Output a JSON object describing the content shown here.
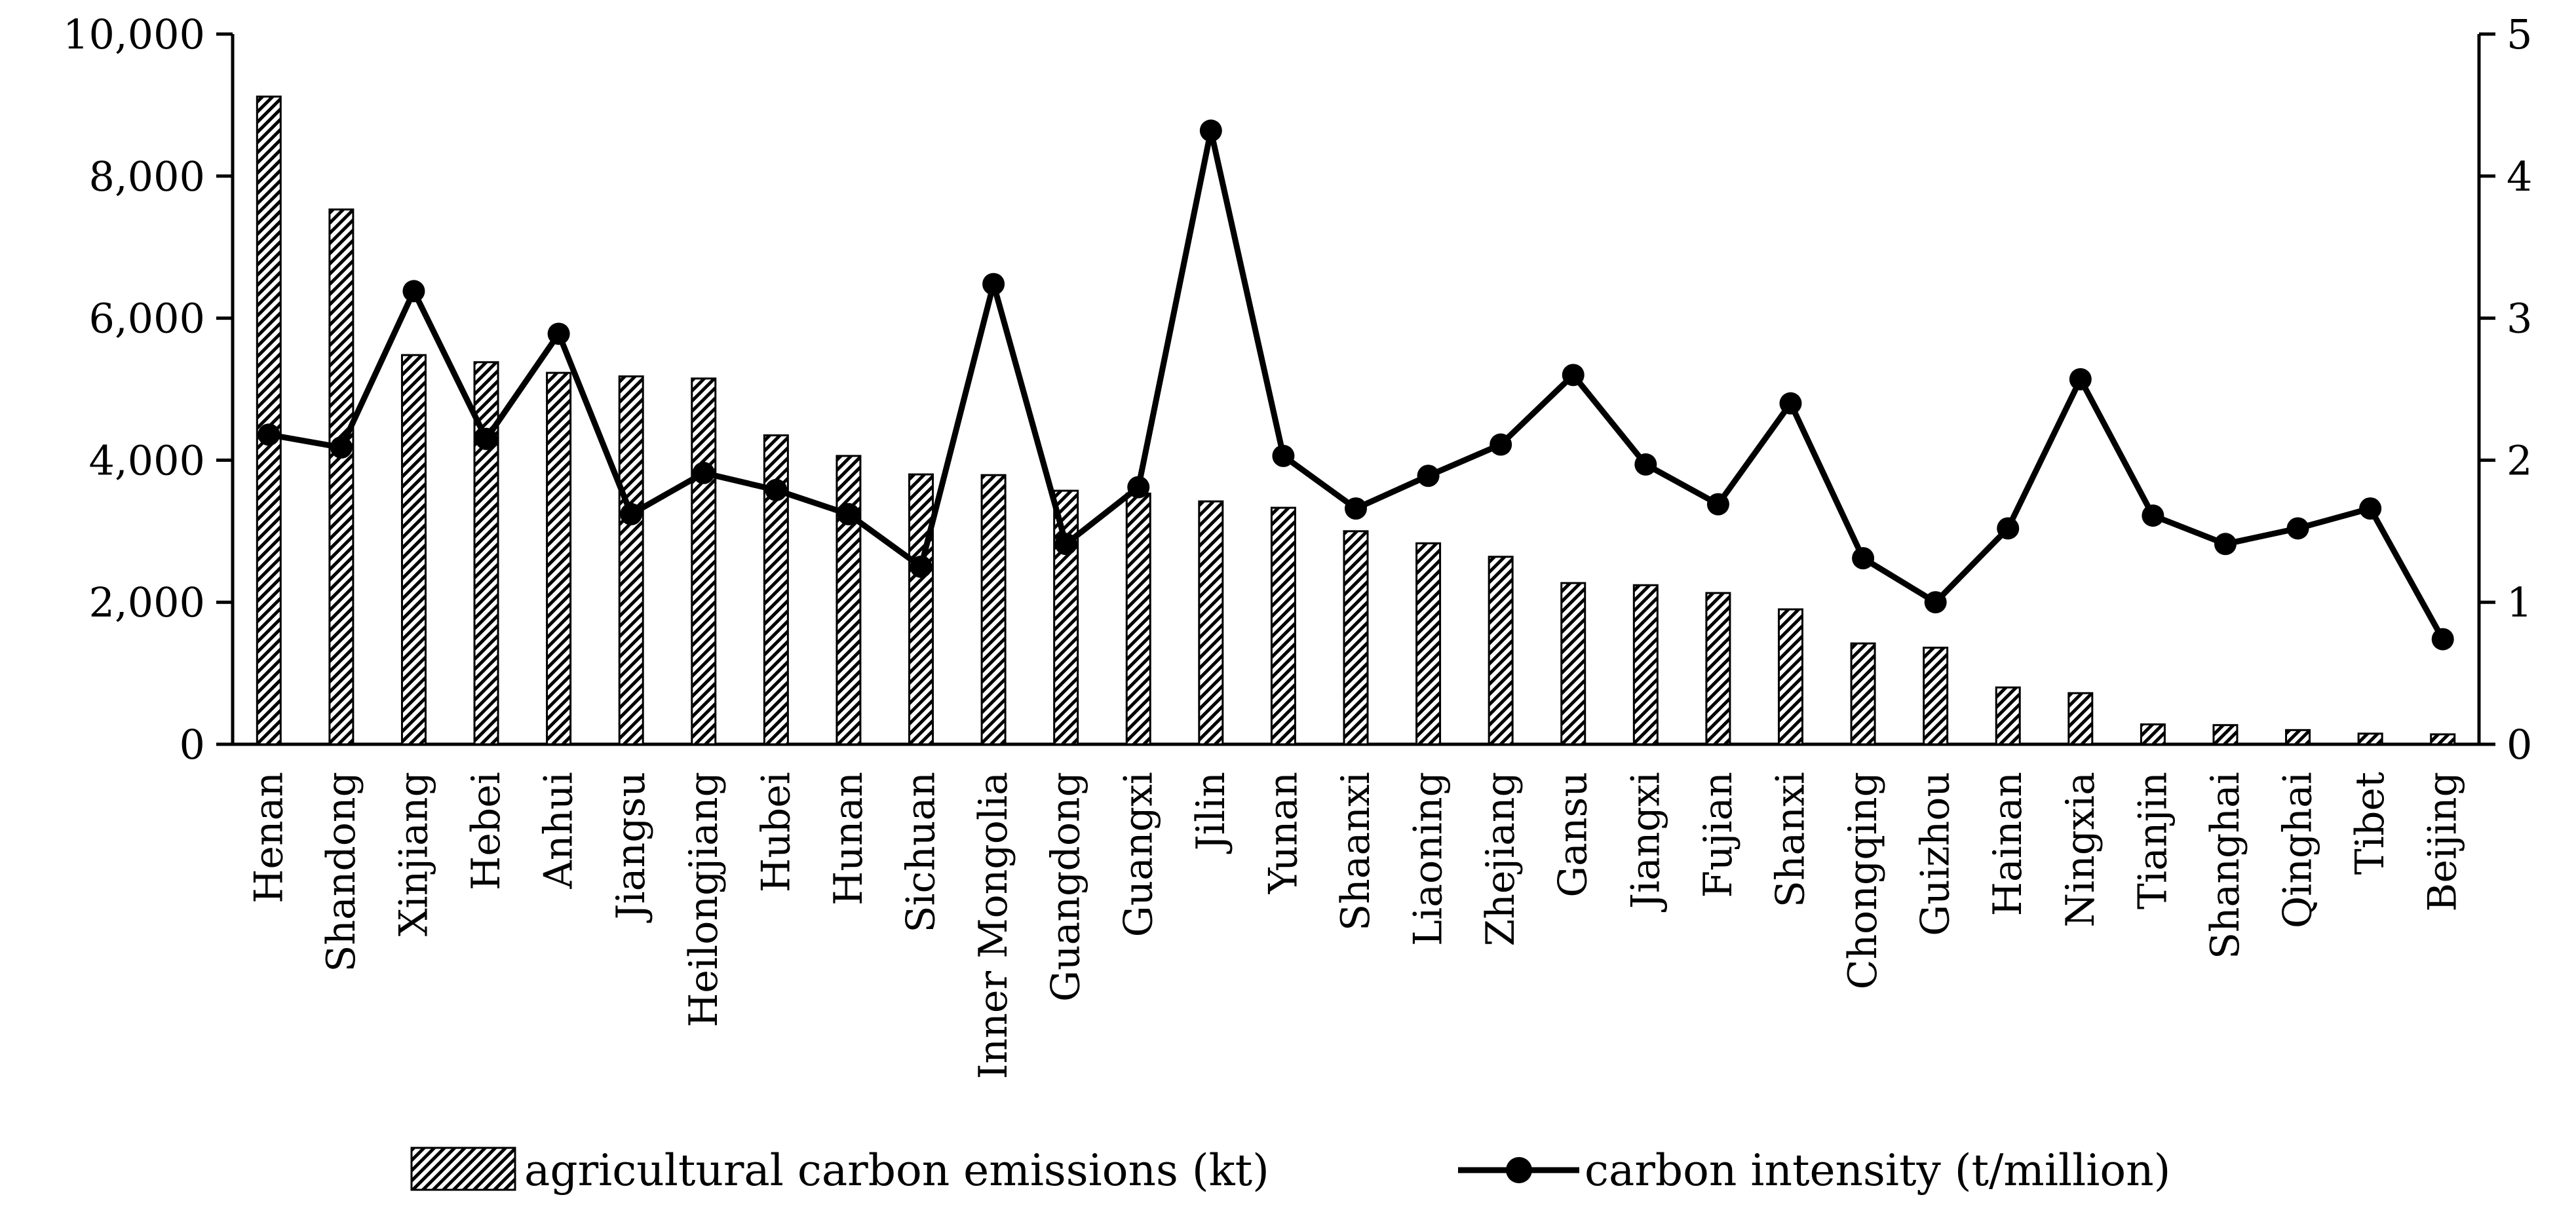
{
  "chart_data": {
    "type": "bar+line",
    "categories": [
      "Henan",
      "Shandong",
      "Xinjiang",
      "Hebei",
      "Anhui",
      "Jiangsu",
      "Heilongjiang",
      "Hubei",
      "Hunan",
      "Sichuan",
      "Inner Mongolia",
      "Guangdong",
      "Guangxi",
      "Jilin",
      "Yunan",
      "Shaanxi",
      "Liaoning",
      "Zhejiang",
      "Gansu",
      "Jiangxi",
      "Fujian",
      "Shanxi",
      "Chongqing",
      "Guizhou",
      "Hainan",
      "Ningxia",
      "Tianjin",
      "Shanghai",
      "Qinghai",
      "Tibet",
      "Beijing"
    ],
    "series": [
      {
        "name": "agricultural carbon emissions (kt)",
        "type": "bar",
        "axis": "left",
        "values": [
          9120,
          7530,
          5480,
          5380,
          5230,
          5180,
          5150,
          4350,
          4060,
          3800,
          3790,
          3570,
          3530,
          3420,
          3330,
          3000,
          2830,
          2640,
          2270,
          2240,
          2130,
          1900,
          1420,
          1360,
          800,
          720,
          280,
          270,
          200,
          150,
          140
        ]
      },
      {
        "name": "carbon intensity (t/million)",
        "type": "line",
        "axis": "right",
        "values": [
          2.18,
          2.09,
          3.19,
          2.15,
          2.89,
          1.62,
          1.91,
          1.79,
          1.62,
          1.25,
          3.24,
          1.41,
          1.81,
          4.32,
          2.03,
          1.66,
          1.89,
          2.11,
          2.6,
          1.97,
          1.69,
          2.4,
          1.31,
          1.0,
          1.52,
          2.57,
          1.61,
          1.41,
          1.52,
          1.66,
          0.74
        ]
      }
    ],
    "y_left": {
      "min": 0,
      "max": 10000,
      "ticks": [
        "0",
        "2,000",
        "4,000",
        "6,000",
        "8,000",
        "10,000"
      ],
      "tick_values": [
        0,
        2000,
        4000,
        6000,
        8000,
        10000
      ]
    },
    "y_right": {
      "min": 0,
      "max": 5,
      "ticks": [
        "0",
        "1",
        "2",
        "3",
        "4",
        "5"
      ],
      "tick_values": [
        0,
        1,
        2,
        3,
        4,
        5
      ]
    },
    "legend": {
      "position": "bottom",
      "items": [
        {
          "label": "agricultural carbon emissions (kt)",
          "kind": "hatched-bar"
        },
        {
          "label": "carbon intensity (t/million)",
          "kind": "line-marker"
        }
      ]
    },
    "colors": {
      "line": "#000000",
      "bar_hatch": "#000000",
      "bar_fill": "#ffffff"
    },
    "grid": false
  }
}
